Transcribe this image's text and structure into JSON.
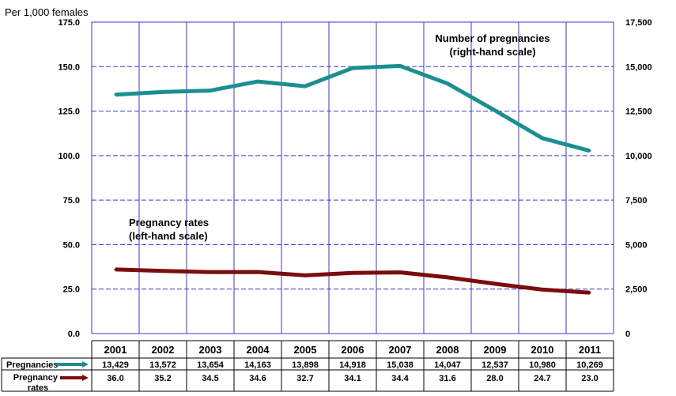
{
  "chart_data": {
    "type": "line",
    "ylabel": "Per 1,000 females",
    "categories": [
      "2001",
      "2002",
      "2003",
      "2004",
      "2005",
      "2006",
      "2007",
      "2008",
      "2009",
      "2010",
      "2011"
    ],
    "left_axis": {
      "ylim": [
        0,
        175
      ],
      "ticks": [
        "0.0",
        "25.0",
        "50.0",
        "75.0",
        "100.0",
        "125.0",
        "150.0",
        "175.0"
      ]
    },
    "right_axis": {
      "ylim": [
        0,
        17500
      ],
      "ticks": [
        "0",
        "2,500",
        "5,000",
        "7,500",
        "10,000",
        "12,500",
        "15,000",
        "17,500"
      ]
    },
    "grid": true,
    "colors": {
      "pregnancies": "#1b8f8f",
      "rates": "#7b0d0d",
      "grid": "#3a3ac8"
    },
    "series": [
      {
        "key": "pregnancies",
        "name": "Pregnancies",
        "axis": "right",
        "values": [
          13429,
          13572,
          13654,
          14163,
          13898,
          14918,
          15038,
          14047,
          12537,
          10980,
          10269
        ],
        "labels": [
          "13,429",
          "13,572",
          "13,654",
          "14,163",
          "13,898",
          "14,918",
          "15,038",
          "14,047",
          "12,537",
          "10,980",
          "10,269"
        ]
      },
      {
        "key": "rates",
        "name": "Pregnancy rates",
        "axis": "left",
        "values": [
          36.0,
          35.2,
          34.5,
          34.6,
          32.7,
          34.1,
          34.4,
          31.6,
          28.0,
          24.7,
          23.0
        ],
        "labels": [
          "36.0",
          "35.2",
          "34.5",
          "34.6",
          "32.7",
          "34.1",
          "34.4",
          "31.6",
          "28.0",
          "24.7",
          "23.0"
        ]
      }
    ],
    "table_labels": {
      "pregnancies": "Pregnancies",
      "rates_line1": "Pregnancy",
      "rates_line2": "rates"
    },
    "annotations": {
      "pregnancies_line1": "Number of pregnancies",
      "pregnancies_line2": "(right-hand scale)",
      "rates_line1": "Pregnancy rates",
      "rates_line2": "(left-hand scale)"
    }
  }
}
